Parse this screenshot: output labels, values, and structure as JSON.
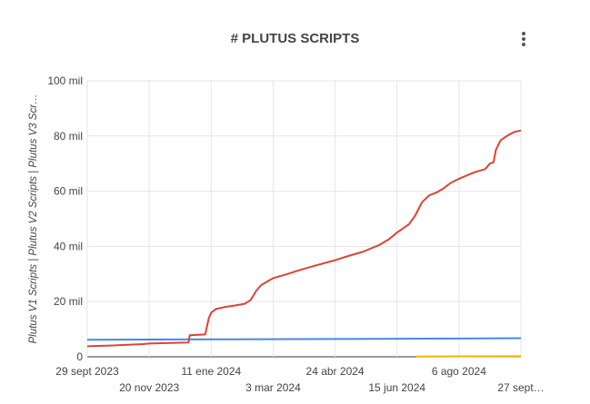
{
  "title": "# PLUTUS SCRIPTS",
  "menu_icon": "more-vert-icon",
  "chart_data": {
    "type": "line",
    "title": "# PLUTUS SCRIPTS",
    "ylabel": "Plutus V1 Scripts | Plutus V2 Scripts | Plutus V3 Scr…",
    "xlabel": "",
    "ylim": [
      0,
      100000
    ],
    "y_ticks": [
      {
        "value": 0,
        "label": "0"
      },
      {
        "value": 20000,
        "label": "20 mil"
      },
      {
        "value": 40000,
        "label": "40 mil"
      },
      {
        "value": 60000,
        "label": "60 mil"
      },
      {
        "value": 80000,
        "label": "80 mil"
      },
      {
        "value": 100000,
        "label": "100 mil"
      }
    ],
    "x_range": [
      "2023-09-29",
      "2024-09-27"
    ],
    "x_ticks": [
      {
        "date": "2023-09-29",
        "label": "29 sept 2023",
        "row": 1
      },
      {
        "date": "2023-11-20",
        "label": "20 nov 2023",
        "row": 2
      },
      {
        "date": "2024-01-11",
        "label": "11 ene 2024",
        "row": 1
      },
      {
        "date": "2024-03-03",
        "label": "3 mar 2024",
        "row": 2
      },
      {
        "date": "2024-04-24",
        "label": "24 abr 2024",
        "row": 1
      },
      {
        "date": "2024-06-15",
        "label": "15 jun 2024",
        "row": 2
      },
      {
        "date": "2024-08-06",
        "label": "6 ago 2024",
        "row": 1
      },
      {
        "date": "2024-09-27",
        "label": "27 sept…",
        "row": 2
      }
    ],
    "grid": true,
    "legend": "none",
    "series": [
      {
        "color": "#4a86e8",
        "points": [
          [
            "2023-09-29",
            6200
          ],
          [
            "2024-01-11",
            6300
          ],
          [
            "2024-04-24",
            6450
          ],
          [
            "2024-08-06",
            6600
          ],
          [
            "2024-09-27",
            6750
          ]
        ]
      },
      {
        "color": "#db4437",
        "points": [
          [
            "2023-09-29",
            3800
          ],
          [
            "2023-10-15",
            4000
          ],
          [
            "2023-10-31",
            4300
          ],
          [
            "2023-11-15",
            4600
          ],
          [
            "2023-11-20",
            4800
          ],
          [
            "2023-12-15",
            5100
          ],
          [
            "2023-12-23",
            5200
          ],
          [
            "2023-12-24",
            7800
          ],
          [
            "2024-01-06",
            8100
          ],
          [
            "2024-01-07",
            10000
          ],
          [
            "2024-01-09",
            14000
          ],
          [
            "2024-01-11",
            16000
          ],
          [
            "2024-01-15",
            17300
          ],
          [
            "2024-01-22",
            18000
          ],
          [
            "2024-01-31",
            18600
          ],
          [
            "2024-02-08",
            19200
          ],
          [
            "2024-02-13",
            20500
          ],
          [
            "2024-02-18",
            24000
          ],
          [
            "2024-02-22",
            26000
          ],
          [
            "2024-03-03",
            28500
          ],
          [
            "2024-03-15",
            30000
          ],
          [
            "2024-03-26",
            31500
          ],
          [
            "2024-04-07",
            33000
          ],
          [
            "2024-04-24",
            35000
          ],
          [
            "2024-05-05",
            36500
          ],
          [
            "2024-05-17",
            38000
          ],
          [
            "2024-05-31",
            40500
          ],
          [
            "2024-06-08",
            42500
          ],
          [
            "2024-06-15",
            45000
          ],
          [
            "2024-06-25",
            48000
          ],
          [
            "2024-06-30",
            51000
          ],
          [
            "2024-07-06",
            56000
          ],
          [
            "2024-07-12",
            58500
          ],
          [
            "2024-07-18",
            59500
          ],
          [
            "2024-07-24",
            61000
          ],
          [
            "2024-07-30",
            63000
          ],
          [
            "2024-08-06",
            64500
          ],
          [
            "2024-08-14",
            66000
          ],
          [
            "2024-08-20",
            67000
          ],
          [
            "2024-08-28",
            68000
          ],
          [
            "2024-09-01",
            70000
          ],
          [
            "2024-09-04",
            70500
          ],
          [
            "2024-09-06",
            75000
          ],
          [
            "2024-09-10",
            78500
          ],
          [
            "2024-09-17",
            80500
          ],
          [
            "2024-09-22",
            81500
          ],
          [
            "2024-09-27",
            82000
          ]
        ]
      },
      {
        "color": "#f4b400",
        "points": [
          [
            "2024-07-01",
            100
          ],
          [
            "2024-08-06",
            150
          ],
          [
            "2024-09-27",
            200
          ]
        ]
      }
    ]
  }
}
